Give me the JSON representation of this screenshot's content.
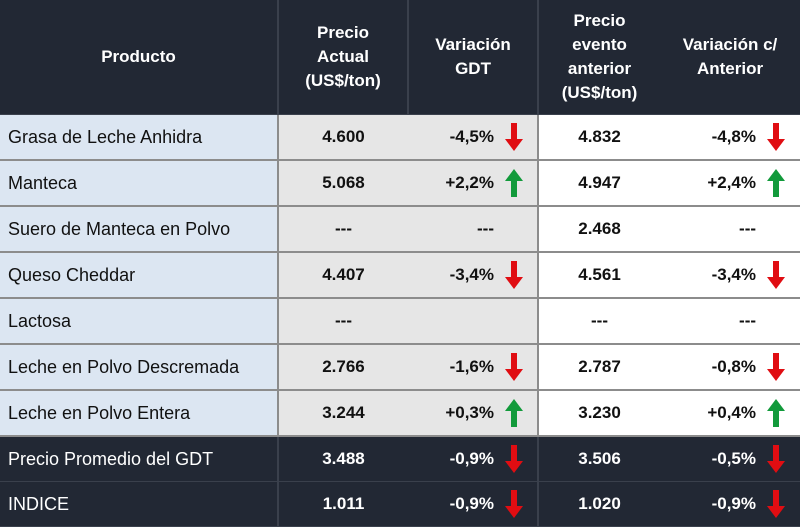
{
  "headers": {
    "product": "Producto",
    "current_price": "Precio Actual (US$/ton)",
    "variation_gdt": "Variación GDT",
    "previous_price": "Precio evento anterior (US$/ton)",
    "variation_prev": "Variación c/ Anterior"
  },
  "colors": {
    "up": "#129a3b",
    "down": "#e00d12",
    "header_bg": "#222834",
    "product_bg": "#dce6f2",
    "current_bg": "#e6e6e6"
  },
  "rows": [
    {
      "name": "Grasa de Leche Anhidra",
      "cur": "4.600",
      "var_gdt": "-4,5%",
      "dir_gdt": "down",
      "prev": "4.832",
      "var_prev": "-4,8%",
      "dir_prev": "down"
    },
    {
      "name": "Manteca",
      "cur": "5.068",
      "var_gdt": "+2,2%",
      "dir_gdt": "up",
      "prev": "4.947",
      "var_prev": "+2,4%",
      "dir_prev": "up"
    },
    {
      "name": "Suero de Manteca en Polvo",
      "cur": "---",
      "var_gdt": "---",
      "dir_gdt": "",
      "prev": "2.468",
      "var_prev": "---",
      "dir_prev": ""
    },
    {
      "name": "Queso Cheddar",
      "cur": "4.407",
      "var_gdt": "-3,4%",
      "dir_gdt": "down",
      "prev": "4.561",
      "var_prev": "-3,4%",
      "dir_prev": "down"
    },
    {
      "name": "Lactosa",
      "cur": "---",
      "var_gdt": "",
      "dir_gdt": "",
      "prev": "---",
      "var_prev": "---",
      "dir_prev": ""
    },
    {
      "name": "Leche en Polvo Descremada",
      "cur": "2.766",
      "var_gdt": "-1,6%",
      "dir_gdt": "down",
      "prev": "2.787",
      "var_prev": "-0,8%",
      "dir_prev": "down"
    },
    {
      "name": "Leche en Polvo Entera",
      "cur": "3.244",
      "var_gdt": "+0,3%",
      "dir_gdt": "up",
      "prev": "3.230",
      "var_prev": "+0,4%",
      "dir_prev": "up"
    }
  ],
  "summary": [
    {
      "name": "Precio Promedio del GDT",
      "cur": "3.488",
      "var_gdt": "-0,9%",
      "dir_gdt": "down",
      "prev": "3.506",
      "var_prev": "-0,5%",
      "dir_prev": "down"
    },
    {
      "name": "INDICE",
      "cur": "1.011",
      "var_gdt": "-0,9%",
      "dir_gdt": "down",
      "prev": "1.020",
      "var_prev": "-0,9%",
      "dir_prev": "down"
    }
  ]
}
